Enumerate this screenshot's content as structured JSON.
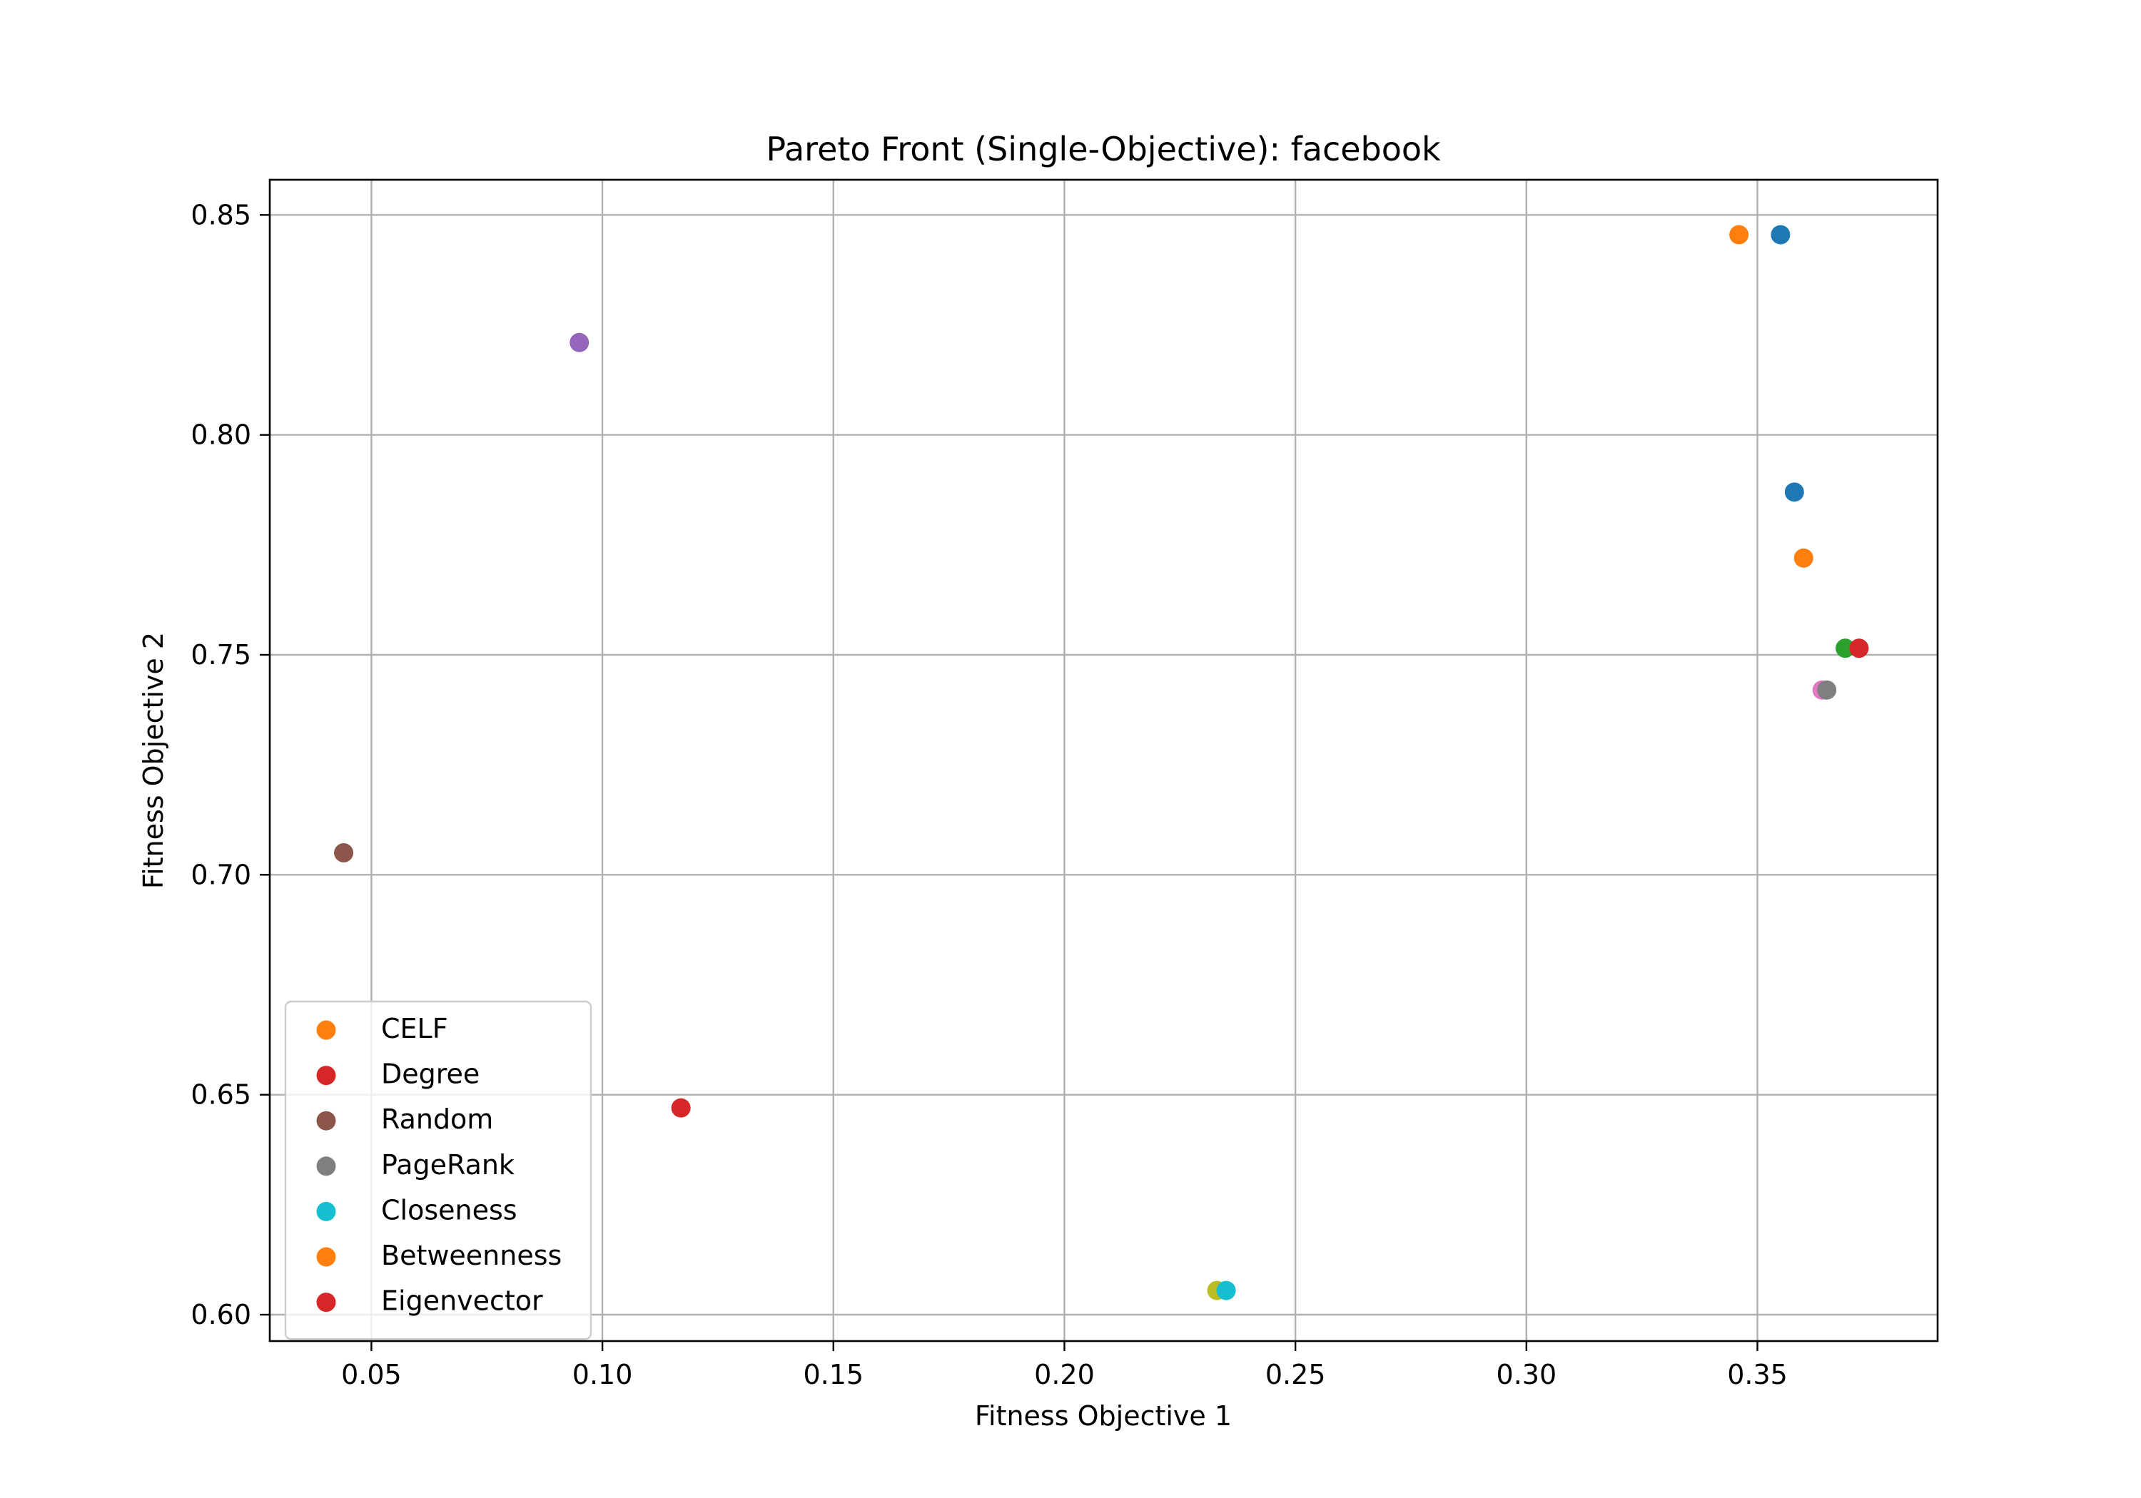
{
  "chart_data": {
    "type": "scatter",
    "title": "Pareto Front (Single-Objective): facebook",
    "xlabel": "Fitness Objective 1",
    "ylabel": "Fitness Objective 2",
    "xlim": [
      0.028,
      0.389
    ],
    "ylim": [
      0.594,
      0.858
    ],
    "xticks": [
      0.05,
      0.1,
      0.15,
      0.2,
      0.25,
      0.3,
      0.35
    ],
    "xtick_labels": [
      "0.05",
      "0.10",
      "0.15",
      "0.20",
      "0.25",
      "0.30",
      "0.35"
    ],
    "yticks": [
      0.6,
      0.65,
      0.7,
      0.75,
      0.8,
      0.85
    ],
    "ytick_labels": [
      "0.60",
      "0.65",
      "0.70",
      "0.75",
      "0.80",
      "0.85"
    ],
    "grid": true,
    "legend_position": "lower-left",
    "points": [
      {
        "x": 0.346,
        "y": 0.8455,
        "color": "#ff7f0e"
      },
      {
        "x": 0.355,
        "y": 0.8455,
        "color": "#1f77b4"
      },
      {
        "x": 0.095,
        "y": 0.821,
        "color": "#9467bd"
      },
      {
        "x": 0.358,
        "y": 0.787,
        "color": "#1f77b4"
      },
      {
        "x": 0.36,
        "y": 0.772,
        "color": "#ff7f0e"
      },
      {
        "x": 0.369,
        "y": 0.7515,
        "color": "#2ca02c"
      },
      {
        "x": 0.372,
        "y": 0.7515,
        "color": "#d62728"
      },
      {
        "x": 0.364,
        "y": 0.742,
        "color": "#e377c2"
      },
      {
        "x": 0.365,
        "y": 0.742,
        "color": "#7f7f7f"
      },
      {
        "x": 0.044,
        "y": 0.705,
        "color": "#8c564b"
      },
      {
        "x": 0.117,
        "y": 0.647,
        "color": "#d62728"
      },
      {
        "x": 0.233,
        "y": 0.6055,
        "color": "#bcbd22"
      },
      {
        "x": 0.235,
        "y": 0.6055,
        "color": "#17becf"
      }
    ],
    "legend": [
      {
        "label": "CELF",
        "color": "#ff7f0e"
      },
      {
        "label": "Degree",
        "color": "#d62728"
      },
      {
        "label": "Random",
        "color": "#8c564b"
      },
      {
        "label": "PageRank",
        "color": "#7f7f7f"
      },
      {
        "label": "Closeness",
        "color": "#17becf"
      },
      {
        "label": "Betweenness",
        "color": "#ff7f0e"
      },
      {
        "label": "Eigenvector",
        "color": "#d62728"
      }
    ]
  }
}
